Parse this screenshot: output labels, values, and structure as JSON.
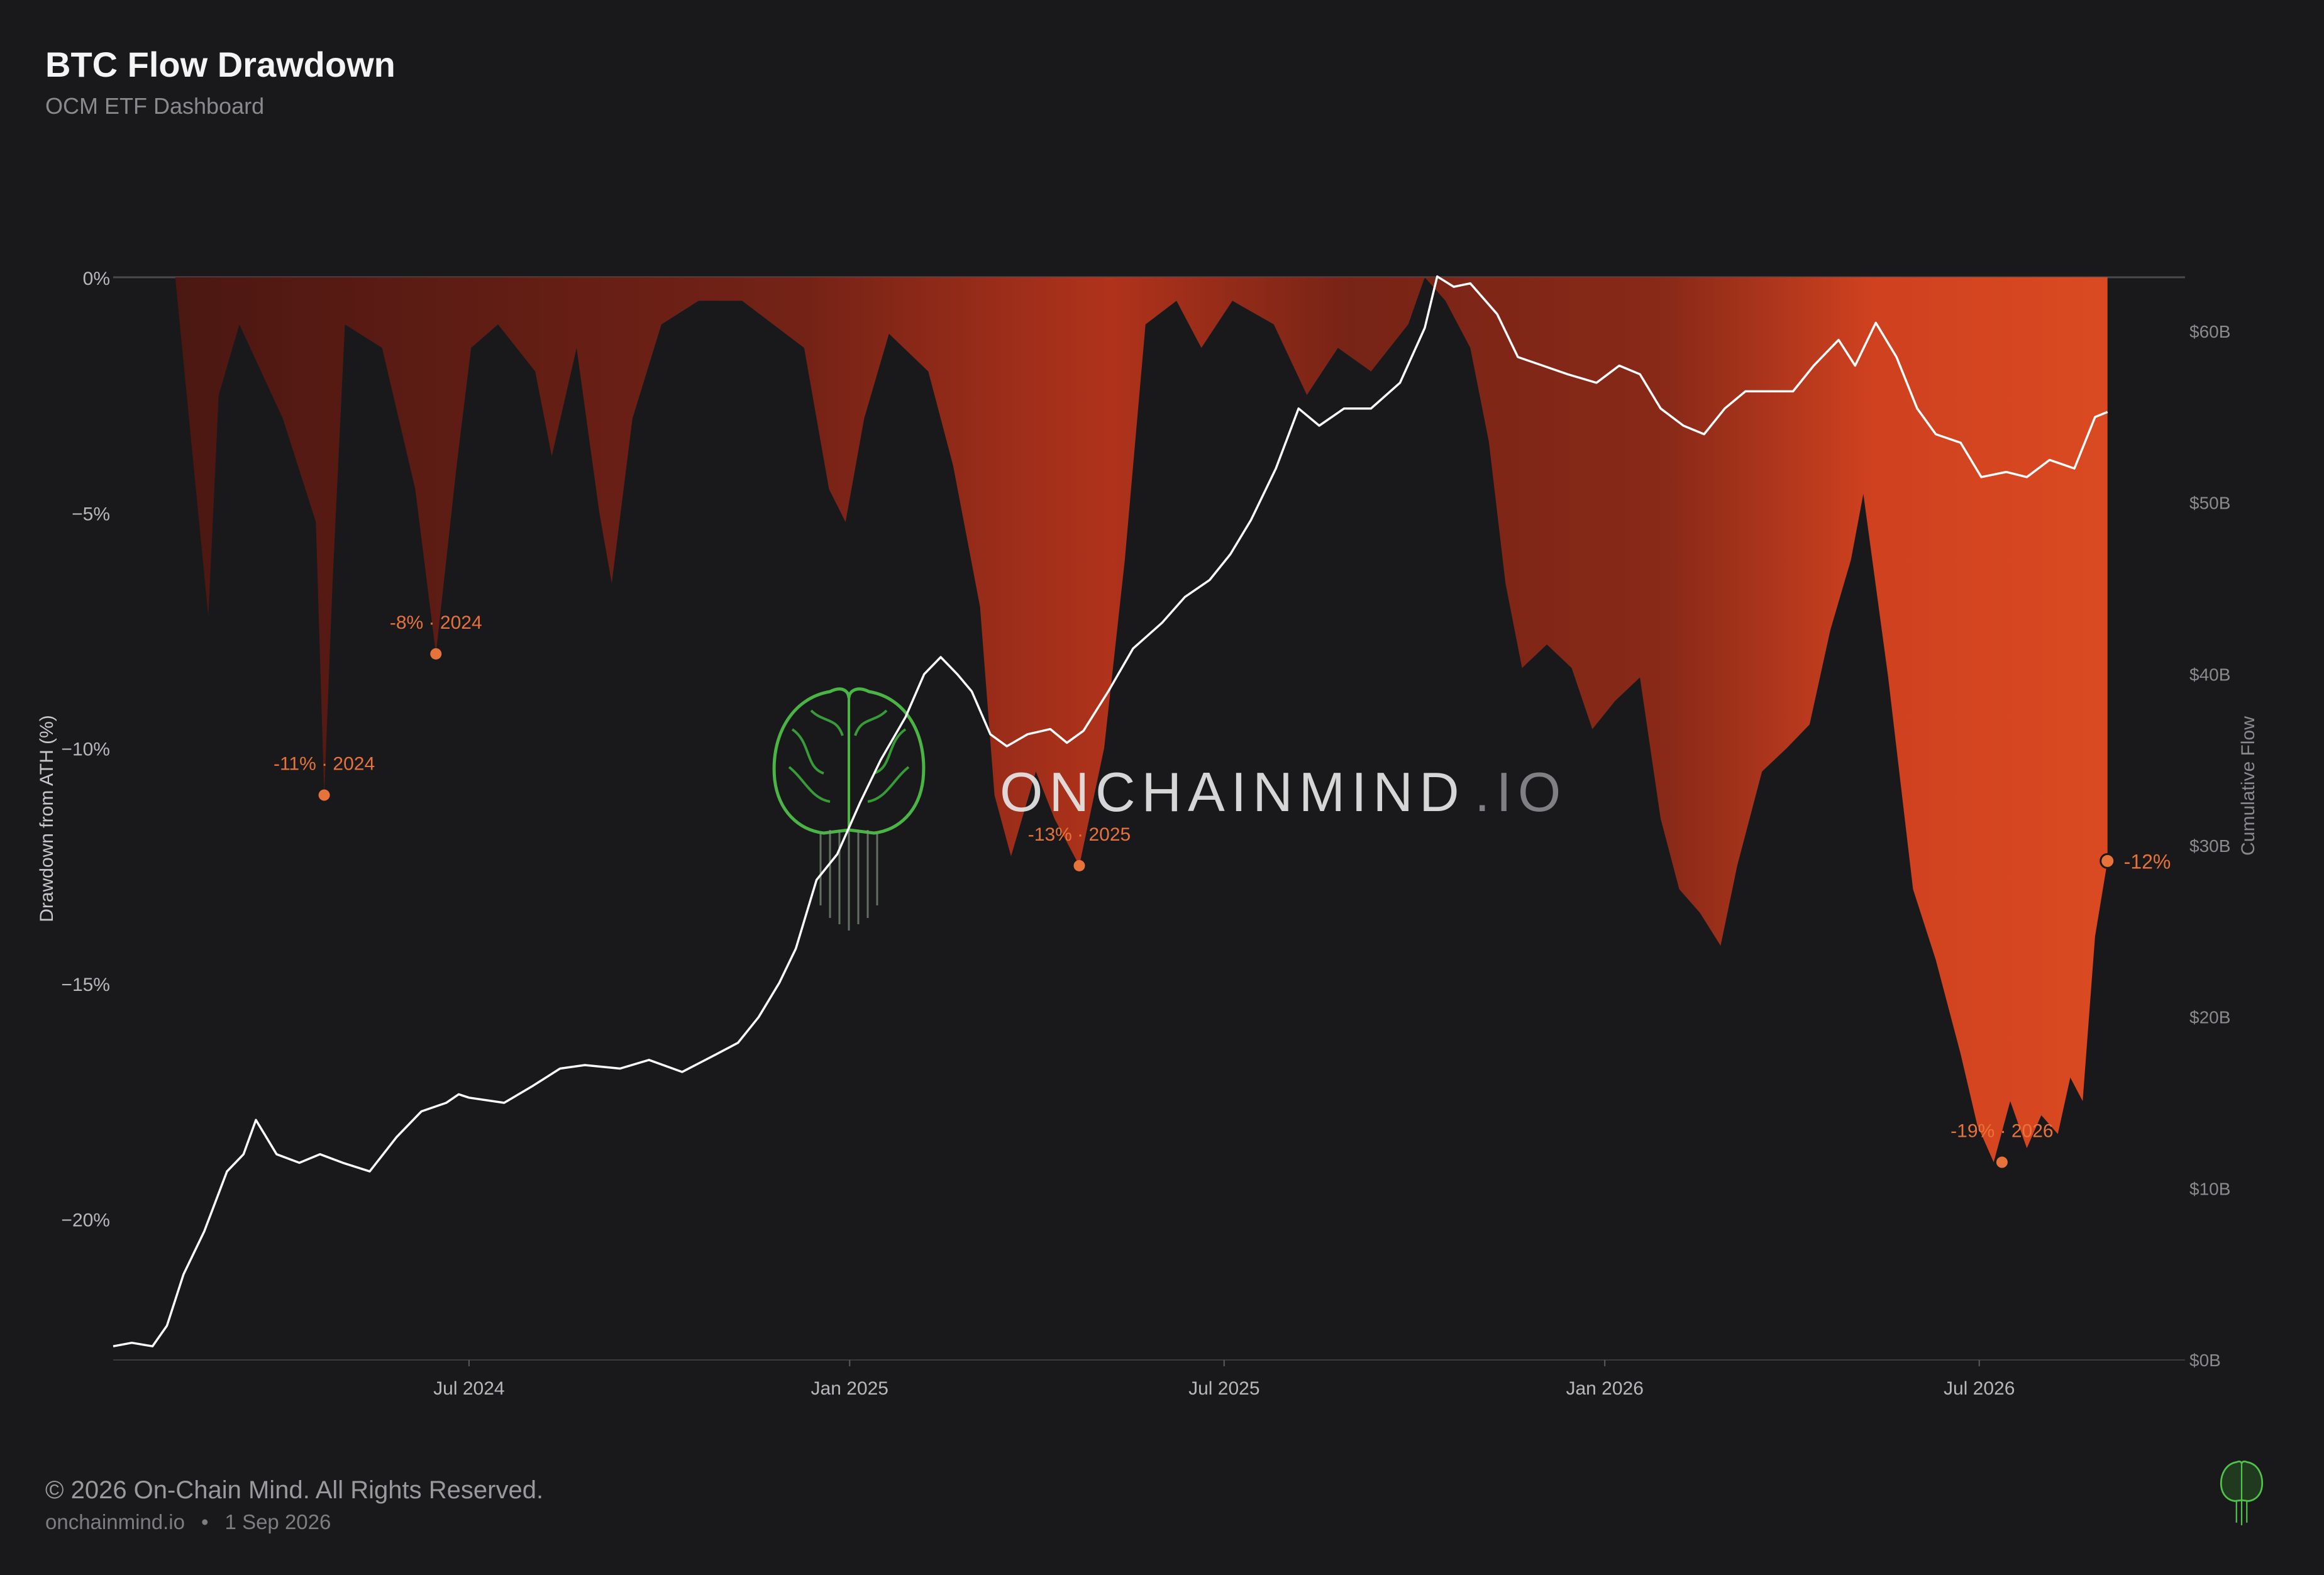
{
  "header": {
    "title": "BTC Flow Drawdown",
    "subtitle": "OCM ETF Dashboard"
  },
  "footer": {
    "copyright": "© 2026 On-Chain Mind. All Rights Reserved.",
    "site": "onchainmind.io",
    "separator": "•",
    "date": "1 Sep 2026"
  },
  "watermark": {
    "brand": "ONCHAINMIND",
    "suffix": ".IO"
  },
  "colors": {
    "background": "#19191c",
    "drawdown_dark": "#5a1a14",
    "drawdown_mid": "#a8301c",
    "drawdown_bright": "#e04a22",
    "annotation": "#e8733a",
    "flow_line": "#ffffff",
    "logo_green": "#4fc34a"
  },
  "chart_data": {
    "type": "area",
    "title": "BTC Flow Drawdown",
    "subtitle": "OCM ETF Dashboard",
    "x_ticks": [
      "Jul 2024",
      "Jan 2025",
      "Jul 2025",
      "Jan 2026",
      "Jul 2026"
    ],
    "x_range": [
      "2024-01-11",
      "2026-09-01"
    ],
    "left_axis": {
      "label": "Drawdown from ATH (%)",
      "ticks": [
        "0%",
        "−5%",
        "−10%",
        "−15%",
        "−20%"
      ],
      "tick_values": [
        0,
        -5,
        -10,
        -15,
        -20
      ],
      "range": [
        -23,
        0
      ]
    },
    "right_axis": {
      "label": "Cumulative Flow",
      "ticks": [
        "$0B",
        "$10B",
        "$20B",
        "$30B",
        "$40B",
        "$50B",
        "$60B"
      ],
      "tick_values": [
        0,
        10,
        20,
        30,
        40,
        50,
        60
      ],
      "range": [
        0,
        60
      ]
    },
    "series": [
      {
        "name": "Drawdown from ATH (%)",
        "axis": "left",
        "points": [
          [
            "2024-01-11",
            0
          ],
          [
            "2024-02-10",
            0
          ],
          [
            "2024-02-26",
            -7.2
          ],
          [
            "2024-03-02",
            -2.5
          ],
          [
            "2024-03-12",
            -1
          ],
          [
            "2024-04-02",
            -3
          ],
          [
            "2024-04-18",
            -5.2
          ],
          [
            "2024-04-22",
            -11
          ],
          [
            "2024-04-26",
            -6.5
          ],
          [
            "2024-05-02",
            -1
          ],
          [
            "2024-05-20",
            -1.5
          ],
          [
            "2024-06-05",
            -4.5
          ],
          [
            "2024-06-15",
            -8
          ],
          [
            "2024-06-25",
            -4
          ],
          [
            "2024-07-02",
            -1.5
          ],
          [
            "2024-07-15",
            -1
          ],
          [
            "2024-08-02",
            -2
          ],
          [
            "2024-08-10",
            -3.8
          ],
          [
            "2024-08-22",
            -1.5
          ],
          [
            "2024-09-02",
            -5
          ],
          [
            "2024-09-08",
            -6.5
          ],
          [
            "2024-09-18",
            -3
          ],
          [
            "2024-10-02",
            -1
          ],
          [
            "2024-10-20",
            -0.5
          ],
          [
            "2024-11-10",
            -0.5
          ],
          [
            "2024-12-10",
            -1.5
          ],
          [
            "2024-12-22",
            -4.5
          ],
          [
            "2024-12-30",
            -5.2
          ],
          [
            "2025-01-08",
            -3
          ],
          [
            "2025-01-20",
            -1.2
          ],
          [
            "2025-02-08",
            -2
          ],
          [
            "2025-02-20",
            -4
          ],
          [
            "2025-03-05",
            -7
          ],
          [
            "2025-03-12",
            -11
          ],
          [
            "2025-03-20",
            -12.3
          ],
          [
            "2025-04-01",
            -10.5
          ],
          [
            "2025-04-10",
            -11.5
          ],
          [
            "2025-04-22",
            -12.5
          ],
          [
            "2025-05-04",
            -10
          ],
          [
            "2025-05-14",
            -6
          ],
          [
            "2025-05-24",
            -1
          ],
          [
            "2025-06-08",
            -0.5
          ],
          [
            "2025-06-20",
            -1.5
          ],
          [
            "2025-07-05",
            -0.5
          ],
          [
            "2025-07-25",
            -1
          ],
          [
            "2025-08-10",
            -2.5
          ],
          [
            "2025-08-25",
            -1.5
          ],
          [
            "2025-09-10",
            -2
          ],
          [
            "2025-09-28",
            -1
          ],
          [
            "2025-10-06",
            0
          ],
          [
            "2025-10-16",
            -0.5
          ],
          [
            "2025-10-28",
            -1.5
          ],
          [
            "2025-11-06",
            -3.5
          ],
          [
            "2025-11-14",
            -6.5
          ],
          [
            "2025-11-22",
            -8.3
          ],
          [
            "2025-12-04",
            -7.8
          ],
          [
            "2025-12-16",
            -8.3
          ],
          [
            "2025-12-26",
            -9.6
          ],
          [
            "2026-01-06",
            -9
          ],
          [
            "2026-01-18",
            -8.5
          ],
          [
            "2026-01-28",
            -11.5
          ],
          [
            "2026-02-06",
            -13
          ],
          [
            "2026-02-16",
            -13.5
          ],
          [
            "2026-02-26",
            -14.2
          ],
          [
            "2026-03-06",
            -12.5
          ],
          [
            "2026-03-18",
            -10.5
          ],
          [
            "2026-03-30",
            -10
          ],
          [
            "2026-04-10",
            -9.5
          ],
          [
            "2026-04-20",
            -7.5
          ],
          [
            "2026-04-30",
            -6
          ],
          [
            "2026-05-06",
            -4.6
          ],
          [
            "2026-05-18",
            -8.5
          ],
          [
            "2026-05-30",
            -13
          ],
          [
            "2026-06-10",
            -14.5
          ],
          [
            "2026-06-22",
            -16.5
          ],
          [
            "2026-06-30",
            -18
          ],
          [
            "2026-07-08",
            -18.8
          ],
          [
            "2026-07-16",
            -17.5
          ],
          [
            "2026-07-24",
            -18.5
          ],
          [
            "2026-07-31",
            -17.8
          ],
          [
            "2026-08-08",
            -18.2
          ],
          [
            "2026-08-14",
            -17
          ],
          [
            "2026-08-20",
            -17.5
          ],
          [
            "2026-08-26",
            -14
          ],
          [
            "2026-09-01",
            -12.4
          ]
        ]
      },
      {
        "name": "Cumulative Flow",
        "axis": "right",
        "points": [
          [
            "2024-01-11",
            0.8
          ],
          [
            "2024-01-20",
            1
          ],
          [
            "2024-01-30",
            0.8
          ],
          [
            "2024-02-06",
            2
          ],
          [
            "2024-02-14",
            5
          ],
          [
            "2024-02-24",
            7.5
          ],
          [
            "2024-03-06",
            11
          ],
          [
            "2024-03-14",
            12
          ],
          [
            "2024-03-20",
            14
          ],
          [
            "2024-03-30",
            12
          ],
          [
            "2024-04-10",
            11.5
          ],
          [
            "2024-04-20",
            12
          ],
          [
            "2024-05-01",
            11.5
          ],
          [
            "2024-05-14",
            11
          ],
          [
            "2024-05-27",
            13
          ],
          [
            "2024-06-08",
            14.5
          ],
          [
            "2024-06-20",
            15
          ],
          [
            "2024-06-26",
            15.5
          ],
          [
            "2024-07-01",
            15.3
          ],
          [
            "2024-07-18",
            15
          ],
          [
            "2024-08-01",
            16
          ],
          [
            "2024-08-14",
            17
          ],
          [
            "2024-08-26",
            17.2
          ],
          [
            "2024-09-12",
            17
          ],
          [
            "2024-09-26",
            17.5
          ],
          [
            "2024-10-12",
            16.8
          ],
          [
            "2024-10-28",
            17.8
          ],
          [
            "2024-11-08",
            18.5
          ],
          [
            "2024-11-18",
            20
          ],
          [
            "2024-11-28",
            22
          ],
          [
            "2024-12-06",
            24
          ],
          [
            "2024-12-16",
            28
          ],
          [
            "2024-12-26",
            29.5
          ],
          [
            "2025-01-06",
            32.5
          ],
          [
            "2025-01-16",
            35
          ],
          [
            "2025-01-28",
            37.5
          ],
          [
            "2025-02-06",
            40
          ],
          [
            "2025-02-14",
            41
          ],
          [
            "2025-02-22",
            40
          ],
          [
            "2025-03-01",
            39
          ],
          [
            "2025-03-10",
            36.5
          ],
          [
            "2025-03-18",
            35.8
          ],
          [
            "2025-03-28",
            36.5
          ],
          [
            "2025-04-08",
            36.8
          ],
          [
            "2025-04-16",
            36
          ],
          [
            "2025-04-24",
            36.7
          ],
          [
            "2025-05-06",
            39
          ],
          [
            "2025-05-18",
            41.5
          ],
          [
            "2025-06-01",
            43
          ],
          [
            "2025-06-12",
            44.5
          ],
          [
            "2025-06-24",
            45.5
          ],
          [
            "2025-07-04",
            47
          ],
          [
            "2025-07-14",
            49
          ],
          [
            "2025-07-26",
            52
          ],
          [
            "2025-08-06",
            55.5
          ],
          [
            "2025-08-16",
            54.5
          ],
          [
            "2025-08-28",
            55.5
          ],
          [
            "2025-09-10",
            55.5
          ],
          [
            "2025-09-24",
            57
          ],
          [
            "2025-10-06",
            60.2
          ],
          [
            "2025-10-12",
            63.2
          ],
          [
            "2025-10-20",
            62.6
          ],
          [
            "2025-10-28",
            62.8
          ],
          [
            "2025-11-10",
            61
          ],
          [
            "2025-11-20",
            58.5
          ],
          [
            "2025-12-02",
            58
          ],
          [
            "2025-12-14",
            57.5
          ],
          [
            "2025-12-28",
            57
          ],
          [
            "2026-01-08",
            58
          ],
          [
            "2026-01-18",
            57.5
          ],
          [
            "2026-01-28",
            55.5
          ],
          [
            "2026-02-08",
            54.5
          ],
          [
            "2026-02-18",
            54
          ],
          [
            "2026-02-28",
            55.5
          ],
          [
            "2026-03-10",
            56.5
          ],
          [
            "2026-03-22",
            56.5
          ],
          [
            "2026-04-02",
            56.5
          ],
          [
            "2026-04-12",
            58
          ],
          [
            "2026-04-24",
            59.5
          ],
          [
            "2026-05-02",
            58
          ],
          [
            "2026-05-12",
            60.5
          ],
          [
            "2026-05-22",
            58.5
          ],
          [
            "2026-06-01",
            55.5
          ],
          [
            "2026-06-10",
            54
          ],
          [
            "2026-06-22",
            53.5
          ],
          [
            "2026-07-02",
            51.5
          ],
          [
            "2026-07-14",
            51.8
          ],
          [
            "2026-07-24",
            51.5
          ],
          [
            "2026-08-04",
            52.5
          ],
          [
            "2026-08-16",
            52
          ],
          [
            "2026-08-26",
            55
          ],
          [
            "2026-09-01",
            55.3
          ]
        ]
      }
    ],
    "annotations": [
      {
        "date": "2024-04-22",
        "value": -11,
        "pct": "-11%",
        "year": "2024"
      },
      {
        "date": "2024-06-15",
        "value": -8,
        "pct": "-8%",
        "year": "2024"
      },
      {
        "date": "2025-04-22",
        "value": -12.5,
        "pct": "-13%",
        "year": "2025"
      },
      {
        "date": "2026-07-12",
        "value": -18.8,
        "pct": "-19%",
        "year": "2026"
      }
    ],
    "current": {
      "date": "2026-09-01",
      "value": -12.4,
      "label": "-12%"
    },
    "annotation_separator": "·"
  }
}
